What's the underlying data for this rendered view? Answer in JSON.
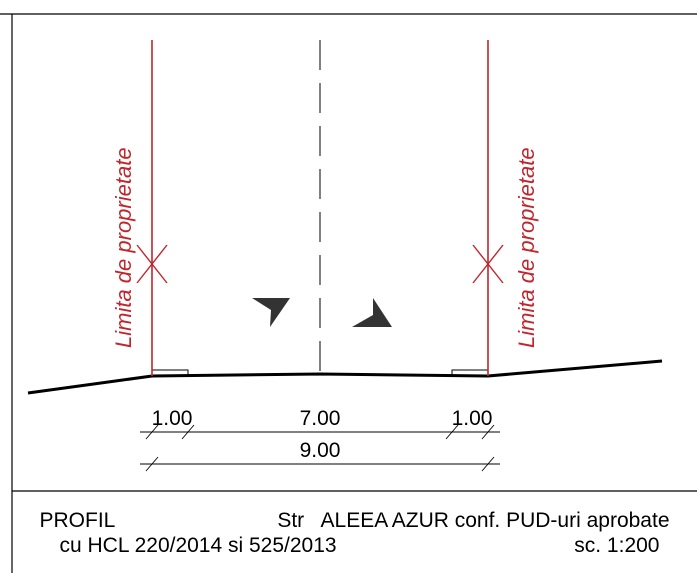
{
  "drawing": {
    "property_limit_label": "Limita de proprietate",
    "dimensions": {
      "left_width": "1.00",
      "center_width": "7.00",
      "right_width": "1.00",
      "total_width": "9.00"
    }
  },
  "title_block": {
    "profile_label": "PROFIL",
    "street_name": "Str   ALEEA AZUR conf. PUD-uri aprobate",
    "decision_ref": "cu HCL 220/2014 si 525/2013",
    "scale": "sc. 1:200"
  },
  "colors": {
    "line": "#000000",
    "property_limit": "#c0262c",
    "arrow": "#333333"
  }
}
